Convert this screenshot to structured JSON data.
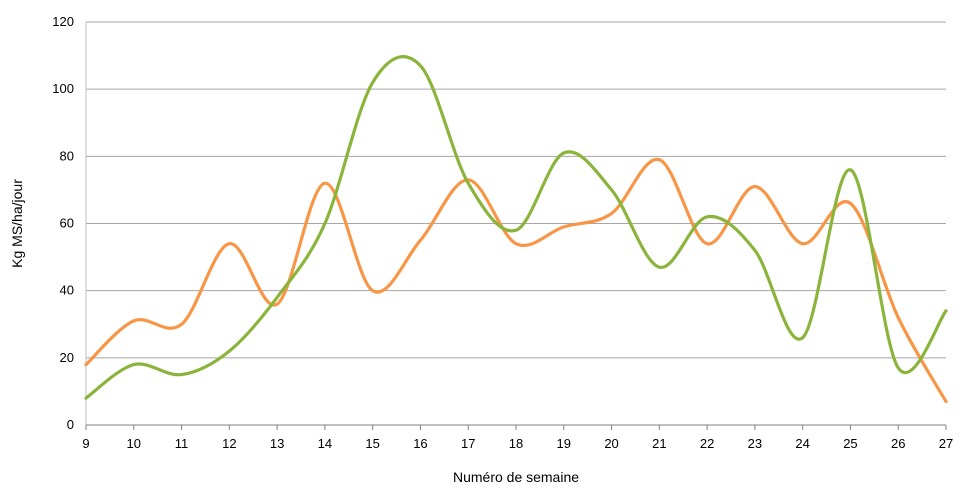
{
  "chart_data": {
    "type": "line",
    "title": "",
    "xlabel": "Numéro de semaine",
    "ylabel": "Kg MS/ha/jour",
    "x": [
      9,
      10,
      11,
      12,
      13,
      14,
      15,
      16,
      17,
      18,
      19,
      20,
      21,
      22,
      23,
      24,
      25,
      26,
      27
    ],
    "x_ticks": [
      "9",
      "10",
      "11",
      "12",
      "13",
      "14",
      "15",
      "16",
      "17",
      "18",
      "19",
      "20",
      "21",
      "22",
      "23",
      "24",
      "25",
      "26",
      "27"
    ],
    "ylim": [
      0,
      120
    ],
    "y_ticks": [
      "0",
      "20",
      "40",
      "60",
      "80",
      "100",
      "120"
    ],
    "grid": "horizontal",
    "legend": "none",
    "series": [
      {
        "color": "#F79646",
        "values": [
          18,
          31,
          30,
          54,
          36,
          72,
          40,
          55,
          73,
          54,
          59,
          63,
          79,
          54,
          71,
          54,
          66,
          32,
          7
        ]
      },
      {
        "color": "#8BB43C",
        "values": [
          8,
          18,
          15,
          22,
          38,
          60,
          102,
          107,
          72,
          58,
          81,
          70,
          47,
          62,
          52,
          26,
          76,
          17,
          34
        ]
      }
    ]
  }
}
